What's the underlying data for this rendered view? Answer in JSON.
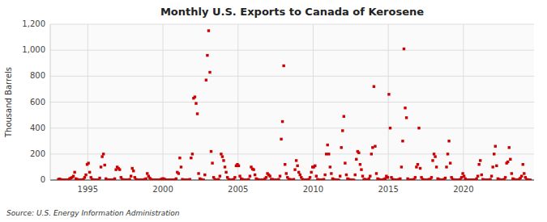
{
  "chart_data": {
    "type": "scatter",
    "title": "Monthly U.S. Exports to Canada of Kerosene",
    "ylabel": "Thousand Barrels",
    "annotations": [
      "Source: U.S. Energy Information Administration"
    ],
    "color": "#cc0000",
    "marker": "square",
    "grid": true,
    "xlim": [
      1992.5,
      2024.7
    ],
    "ylim": [
      0,
      1200
    ],
    "xticks": [
      1995,
      2000,
      2005,
      2010,
      2015,
      2020
    ],
    "yticks": [
      0,
      200,
      400,
      600,
      800,
      {
        "value": 1000,
        "label": "1,000"
      },
      {
        "value": 1200,
        "label": "1,200"
      }
    ],
    "x": [
      1993.0416667,
      1993.125,
      1993.2083333,
      1993.2916667,
      1993.375,
      1993.4583333,
      1993.5416667,
      1993.625,
      1993.7083333,
      1993.7916667,
      1993.875,
      1993.9583333,
      1994.0416667,
      1994.125,
      1994.2083333,
      1994.2916667,
      1994.375,
      1994.4583333,
      1994.5416667,
      1994.625,
      1994.7083333,
      1994.7916667,
      1994.875,
      1994.9583333,
      1995.0416667,
      1995.125,
      1995.2083333,
      1995.2916667,
      1995.375,
      1995.4583333,
      1995.5416667,
      1995.625,
      1995.7083333,
      1995.7916667,
      1995.875,
      1995.9583333,
      1996.0416667,
      1996.125,
      1996.2083333,
      1996.2916667,
      1996.375,
      1996.4583333,
      1996.5416667,
      1996.625,
      1996.7083333,
      1996.7916667,
      1996.875,
      1996.9583333,
      1997.0416667,
      1997.125,
      1997.2083333,
      1997.2916667,
      1997.375,
      1997.4583333,
      1997.5416667,
      1997.625,
      1997.7083333,
      1997.7916667,
      1997.875,
      1997.9583333,
      1998.0416667,
      1998.125,
      1998.2083333,
      1998.2916667,
      1998.375,
      1998.4583333,
      1998.5416667,
      1998.625,
      1998.7083333,
      1998.7916667,
      1998.875,
      1998.9583333,
      1999.0416667,
      1999.125,
      1999.2083333,
      1999.2916667,
      1999.375,
      1999.4583333,
      1999.5416667,
      1999.625,
      1999.7083333,
      1999.7916667,
      1999.875,
      1999.9583333,
      2000.0416667,
      2000.125,
      2000.2083333,
      2000.2916667,
      2000.375,
      2000.4583333,
      2000.5416667,
      2000.625,
      2000.7083333,
      2000.7916667,
      2000.875,
      2000.9583333,
      2001.0416667,
      2001.125,
      2001.2083333,
      2001.2916667,
      2001.375,
      2001.4583333,
      2001.5416667,
      2001.625,
      2001.7083333,
      2001.7916667,
      2001.875,
      2001.9583333,
      2002.0416667,
      2002.125,
      2002.2083333,
      2002.2916667,
      2002.375,
      2002.4583333,
      2002.5416667,
      2002.625,
      2002.7083333,
      2002.7916667,
      2002.875,
      2002.9583333,
      2003.0416667,
      2003.125,
      2003.2083333,
      2003.2916667,
      2003.375,
      2003.4583333,
      2003.5416667,
      2003.625,
      2003.7083333,
      2003.7916667,
      2003.875,
      2003.9583333,
      2004.0416667,
      2004.125,
      2004.2083333,
      2004.2916667,
      2004.375,
      2004.4583333,
      2004.5416667,
      2004.625,
      2004.7083333,
      2004.7916667,
      2004.875,
      2004.9583333,
      2005.0416667,
      2005.125,
      2005.2083333,
      2005.2916667,
      2005.375,
      2005.4583333,
      2005.5416667,
      2005.625,
      2005.7083333,
      2005.7916667,
      2005.875,
      2005.9583333,
      2006.0416667,
      2006.125,
      2006.2083333,
      2006.2916667,
      2006.375,
      2006.4583333,
      2006.5416667,
      2006.625,
      2006.7083333,
      2006.7916667,
      2006.875,
      2006.9583333,
      2007.0416667,
      2007.125,
      2007.2083333,
      2007.2916667,
      2007.375,
      2007.4583333,
      2007.5416667,
      2007.625,
      2007.7083333,
      2007.7916667,
      2007.875,
      2007.9583333,
      2008.0416667,
      2008.125,
      2008.2083333,
      2008.2916667,
      2008.375,
      2008.4583333,
      2008.5416667,
      2008.625,
      2008.7083333,
      2008.7916667,
      2008.875,
      2008.9583333,
      2009.0416667,
      2009.125,
      2009.2083333,
      2009.2916667,
      2009.375,
      2009.4583333,
      2009.5416667,
      2009.625,
      2009.7083333,
      2009.7916667,
      2009.875,
      2009.9583333,
      2010.0416667,
      2010.125,
      2010.2083333,
      2010.2916667,
      2010.375,
      2010.4583333,
      2010.5416667,
      2010.625,
      2010.7083333,
      2010.7916667,
      2010.875,
      2010.9583333,
      2011.0416667,
      2011.125,
      2011.2083333,
      2011.2916667,
      2011.375,
      2011.4583333,
      2011.5416667,
      2011.625,
      2011.7083333,
      2011.7916667,
      2011.875,
      2011.9583333,
      2012.0416667,
      2012.125,
      2012.2083333,
      2012.2916667,
      2012.375,
      2012.4583333,
      2012.5416667,
      2012.625,
      2012.7083333,
      2012.7916667,
      2012.875,
      2012.9583333,
      2013.0416667,
      2013.125,
      2013.2083333,
      2013.2916667,
      2013.375,
      2013.4583333,
      2013.5416667,
      2013.625,
      2013.7083333,
      2013.7916667,
      2013.875,
      2013.9583333,
      2014.0416667,
      2014.125,
      2014.2083333,
      2014.2916667,
      2014.375,
      2014.4583333,
      2014.5416667,
      2014.625,
      2014.7083333,
      2014.7916667,
      2014.875,
      2014.9583333,
      2015.0416667,
      2015.125,
      2015.2083333,
      2015.2916667,
      2015.375,
      2015.4583333,
      2015.5416667,
      2015.625,
      2015.7083333,
      2015.7916667,
      2015.875,
      2015.9583333,
      2016.0416667,
      2016.125,
      2016.2083333,
      2016.2916667,
      2016.375,
      2016.4583333,
      2016.5416667,
      2016.625,
      2016.7083333,
      2016.7916667,
      2016.875,
      2016.9583333,
      2017.0416667,
      2017.125,
      2017.2083333,
      2017.2916667,
      2017.375,
      2017.4583333,
      2017.5416667,
      2017.625,
      2017.7083333,
      2017.7916667,
      2017.875,
      2017.9583333,
      2018.0416667,
      2018.125,
      2018.2083333,
      2018.2916667,
      2018.375,
      2018.4583333,
      2018.5416667,
      2018.625,
      2018.7083333,
      2018.7916667,
      2018.875,
      2018.9583333,
      2019.0416667,
      2019.125,
      2019.2083333,
      2019.2916667,
      2019.375,
      2019.4583333,
      2019.5416667,
      2019.625,
      2019.7083333,
      2019.7916667,
      2019.875,
      2019.9583333,
      2020.0416667,
      2020.125,
      2020.2083333,
      2020.2916667,
      2020.375,
      2020.4583333,
      2020.5416667,
      2020.625,
      2020.7083333,
      2020.7916667,
      2020.875,
      2020.9583333,
      2021.0416667,
      2021.125,
      2021.2083333,
      2021.2916667,
      2021.375,
      2021.4583333,
      2021.5416667,
      2021.625,
      2021.7083333,
      2021.7916667,
      2021.875,
      2021.9583333,
      2022.0416667,
      2022.125,
      2022.2083333,
      2022.2916667,
      2022.375,
      2022.4583333,
      2022.5416667,
      2022.625,
      2022.7083333,
      2022.7916667,
      2022.875,
      2022.9583333,
      2023.0416667,
      2023.125,
      2023.2083333,
      2023.2916667,
      2023.375,
      2023.4583333,
      2023.5416667,
      2023.625,
      2023.7083333,
      2023.7916667,
      2023.875,
      2023.9583333,
      2024.0416667,
      2024.125,
      2024.2083333,
      2024.2916667,
      2024.375,
      2024.4583333
    ],
    "values": [
      5,
      8,
      3,
      0,
      0,
      0,
      0,
      0,
      0,
      10,
      15,
      20,
      30,
      60,
      10,
      5,
      0,
      0,
      0,
      0,
      5,
      20,
      40,
      120,
      130,
      60,
      20,
      5,
      0,
      0,
      0,
      0,
      0,
      15,
      100,
      180,
      200,
      115,
      10,
      0,
      0,
      0,
      0,
      0,
      0,
      10,
      80,
      100,
      90,
      80,
      20,
      5,
      0,
      0,
      0,
      0,
      0,
      5,
      30,
      90,
      70,
      20,
      5,
      0,
      0,
      0,
      0,
      0,
      0,
      5,
      10,
      50,
      30,
      15,
      5,
      0,
      0,
      0,
      0,
      0,
      0,
      0,
      5,
      10,
      10,
      5,
      0,
      0,
      0,
      0,
      0,
      0,
      0,
      0,
      10,
      60,
      50,
      170,
      100,
      5,
      0,
      0,
      0,
      0,
      0,
      5,
      170,
      200,
      630,
      640,
      590,
      510,
      50,
      10,
      5,
      0,
      0,
      40,
      770,
      960,
      1150,
      830,
      220,
      130,
      20,
      5,
      0,
      0,
      5,
      30,
      200,
      180,
      150,
      100,
      60,
      20,
      5,
      0,
      0,
      0,
      5,
      20,
      110,
      120,
      110,
      30,
      10,
      5,
      0,
      0,
      0,
      0,
      5,
      30,
      100,
      85,
      80,
      40,
      10,
      5,
      0,
      0,
      0,
      0,
      0,
      10,
      20,
      50,
      40,
      30,
      5,
      5,
      0,
      0,
      0,
      0,
      5,
      30,
      315,
      450,
      880,
      120,
      50,
      20,
      5,
      5,
      0,
      0,
      5,
      80,
      150,
      110,
      60,
      40,
      20,
      5,
      0,
      0,
      0,
      0,
      5,
      20,
      60,
      100,
      100,
      110,
      30,
      5,
      0,
      0,
      0,
      0,
      5,
      40,
      200,
      270,
      200,
      100,
      50,
      10,
      5,
      0,
      0,
      0,
      0,
      30,
      250,
      380,
      490,
      130,
      40,
      10,
      5,
      0,
      0,
      0,
      0,
      40,
      160,
      220,
      210,
      120,
      80,
      30,
      5,
      5,
      0,
      0,
      10,
      30,
      200,
      250,
      720,
      260,
      50,
      10,
      5,
      0,
      0,
      0,
      5,
      10,
      30,
      20,
      660,
      400,
      20,
      5,
      0,
      0,
      0,
      0,
      5,
      10,
      100,
      300,
      1010,
      555,
      480,
      10,
      0,
      0,
      0,
      0,
      5,
      20,
      100,
      120,
      400,
      90,
      20,
      5,
      0,
      0,
      0,
      0,
      5,
      5,
      20,
      150,
      200,
      180,
      100,
      10,
      5,
      0,
      0,
      0,
      5,
      15,
      100,
      200,
      300,
      130,
      20,
      5,
      0,
      0,
      0,
      0,
      0,
      5,
      20,
      50,
      30,
      10,
      0,
      0,
      0,
      0,
      0,
      0,
      0,
      0,
      10,
      30,
      120,
      150,
      40,
      5,
      0,
      0,
      0,
      0,
      0,
      5,
      30,
      100,
      200,
      260,
      110,
      10,
      5,
      0,
      0,
      0,
      5,
      20,
      130,
      140,
      250,
      160,
      50,
      10,
      5,
      0,
      0,
      0,
      5,
      15,
      30,
      120,
      50,
      20,
      5,
      0,
      0,
      0
    ]
  }
}
